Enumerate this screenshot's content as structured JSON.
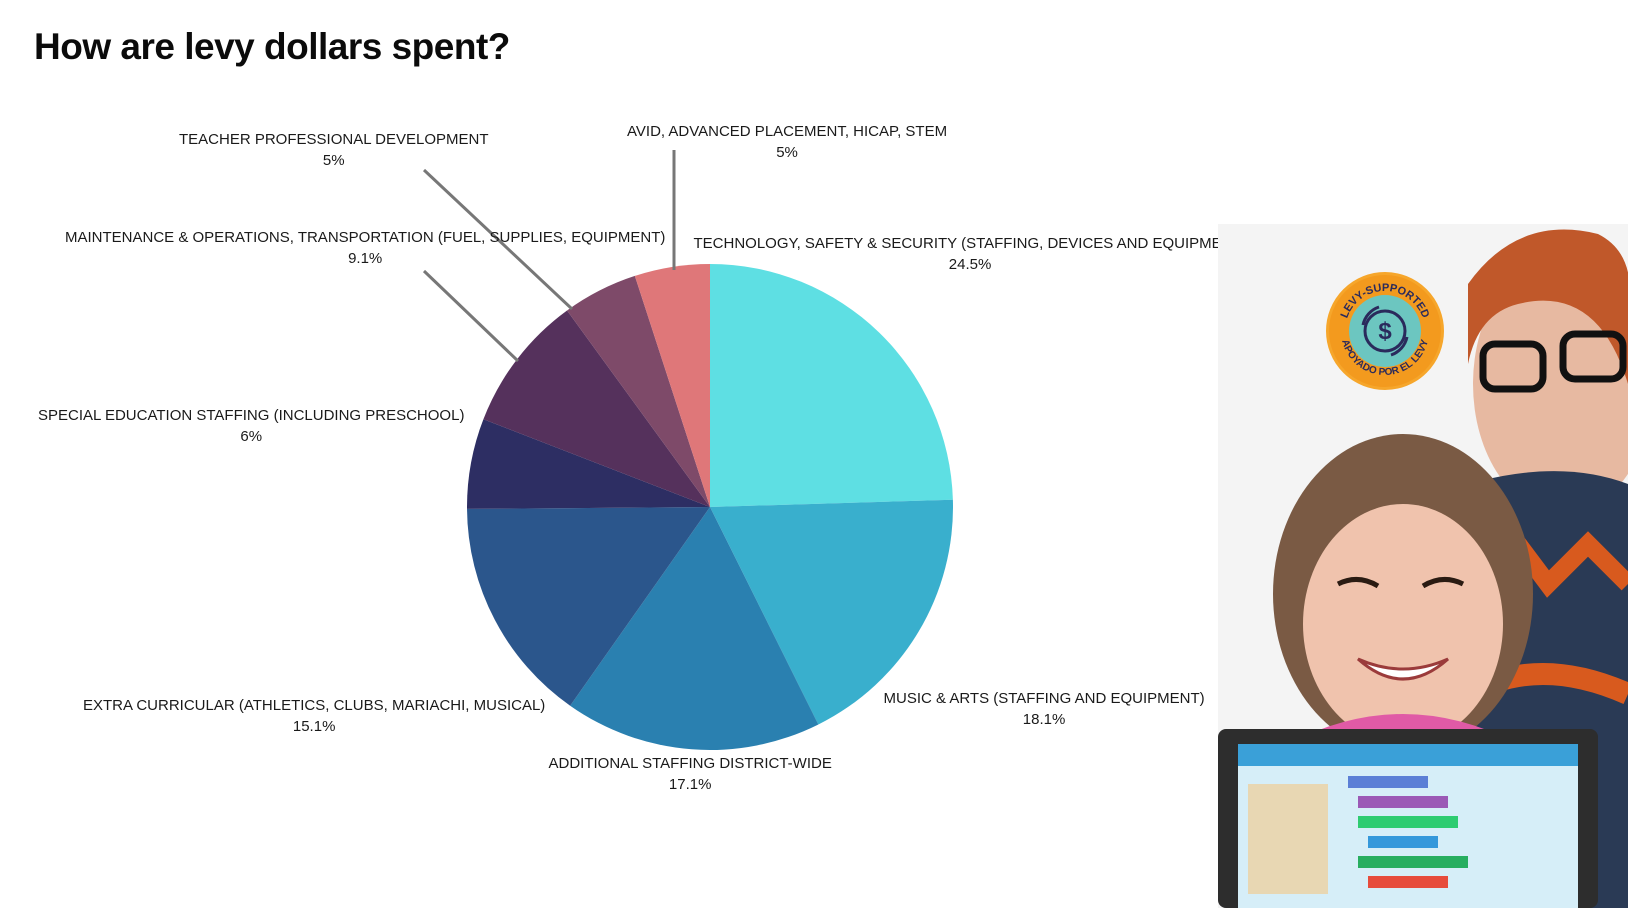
{
  "title": "How are levy dollars spent?",
  "chart_data": {
    "type": "pie",
    "title": "",
    "start_angle_deg": 0,
    "direction": "clockwise",
    "slices": [
      {
        "label": "TECHNOLOGY, SAFETY & SECURITY (STAFFING, DEVICES AND EQUIPMENT)",
        "value": 24.5,
        "value_label": "24.5%",
        "color": "#5EDFE3"
      },
      {
        "label": "MUSIC & ARTS (STAFFING AND EQUIPMENT)",
        "value": 18.1,
        "value_label": "18.1%",
        "color": "#39AFCD"
      },
      {
        "label": "ADDITIONAL STAFFING DISTRICT-WIDE",
        "value": 17.1,
        "value_label": "17.1%",
        "color": "#2A80B0"
      },
      {
        "label": "EXTRA CURRICULAR (ATHLETICS, CLUBS, MARIACHI, MUSICAL)",
        "value": 15.1,
        "value_label": "15.1%",
        "color": "#2B568C"
      },
      {
        "label": "SPECIAL EDUCATION STAFFING (INCLUDING PRESCHOOL)",
        "value": 6,
        "value_label": "6%",
        "color": "#2D2E63"
      },
      {
        "label": "MAINTENANCE & OPERATIONS, TRANSPORTATION (FUEL, SUPPLIES, EQUIPMENT)",
        "value": 9.1,
        "value_label": "9.1%",
        "color": "#55315C"
      },
      {
        "label": "TEACHER PROFESSIONAL DEVELOPMENT",
        "value": 5,
        "value_label": "5%",
        "color": "#7E4A69"
      },
      {
        "label": "AVID, ADVANCED PLACEMENT, HICAP, STEM",
        "value": 5,
        "value_label": "5%",
        "color": "#DF7779"
      }
    ]
  },
  "photo": {
    "badge_text_top": "LEVY-SUPPORTED",
    "badge_text_bottom": "APOYADO POR EL LEVY",
    "colors": {
      "badge": "#F39A1E",
      "badge_inner": "#6CC6C0"
    }
  }
}
